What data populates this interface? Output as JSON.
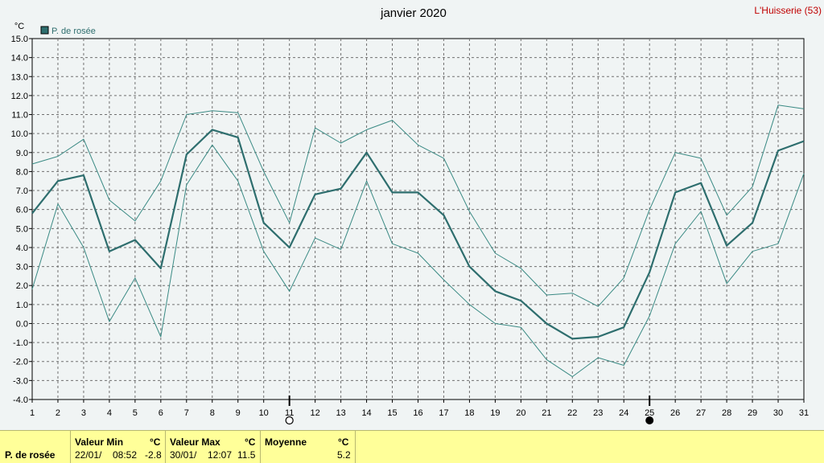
{
  "header": {
    "title": "janvier 2020",
    "station": "L'Huisserie (53)"
  },
  "chart_data": {
    "type": "line",
    "title": "janvier 2020",
    "ylabel": "°C",
    "ylim": [
      -4.0,
      15.0
    ],
    "y_ticks": [
      "15.0",
      "14.0",
      "13.0",
      "12.0",
      "11.0",
      "10.0",
      "9.0",
      "8.0",
      "7.0",
      "6.0",
      "5.0",
      "4.0",
      "3.0",
      "2.0",
      "1.0",
      "0.0",
      "-1.0",
      "-2.0",
      "-3.0",
      "-4.0"
    ],
    "x": [
      1,
      2,
      3,
      4,
      5,
      6,
      7,
      8,
      9,
      10,
      11,
      12,
      13,
      14,
      15,
      16,
      17,
      18,
      19,
      20,
      21,
      22,
      23,
      24,
      25,
      26,
      27,
      28,
      29,
      30,
      31
    ],
    "x_ticks": [
      "1",
      "2",
      "3",
      "4",
      "5",
      "6",
      "7",
      "8",
      "9",
      "10",
      "11",
      "12",
      "13",
      "14",
      "15",
      "16",
      "17",
      "18",
      "19",
      "20",
      "21",
      "22",
      "23",
      "24",
      "25",
      "26",
      "27",
      "28",
      "29",
      "30",
      "31"
    ],
    "grid": true,
    "legend": "top-left",
    "series": [
      {
        "name": "P. de rosée",
        "role": "mean",
        "color": "#2e6e6e",
        "values": [
          5.8,
          7.5,
          7.8,
          3.8,
          4.4,
          2.9,
          8.9,
          10.2,
          9.8,
          5.3,
          4.0,
          6.8,
          7.1,
          9.0,
          6.9,
          6.9,
          5.7,
          3.0,
          1.7,
          1.2,
          0.0,
          -0.8,
          -0.7,
          -0.2,
          2.7,
          6.9,
          7.4,
          4.1,
          5.3,
          9.1,
          9.6
        ]
      },
      {
        "role": "max",
        "color": "#3a8a84",
        "values": [
          8.4,
          8.8,
          9.7,
          6.5,
          5.4,
          7.5,
          11.0,
          11.2,
          11.1,
          8.0,
          5.3,
          10.3,
          9.5,
          10.2,
          10.7,
          9.4,
          8.7,
          5.9,
          3.7,
          2.9,
          1.5,
          1.6,
          0.9,
          2.4,
          6.0,
          9.0,
          8.7,
          5.7,
          7.2,
          11.5,
          11.3
        ]
      },
      {
        "role": "min",
        "color": "#3a8a84",
        "values": [
          1.8,
          6.3,
          4.0,
          0.1,
          2.4,
          -0.7,
          7.3,
          9.4,
          7.5,
          3.8,
          1.7,
          4.5,
          3.9,
          7.5,
          4.2,
          3.7,
          2.3,
          1.0,
          0.0,
          -0.2,
          -1.9,
          -2.8,
          -1.8,
          -2.2,
          0.4,
          4.2,
          5.9,
          2.1,
          3.8,
          4.2,
          7.9
        ]
      }
    ],
    "moon_phases": [
      {
        "day": 11,
        "phase": "full-moon"
      },
      {
        "day": 25,
        "phase": "new-moon"
      }
    ]
  },
  "footer": {
    "label": "P. de rosée",
    "min_header": "Valeur Min",
    "min_unit": "°C",
    "min_date": "22/01/",
    "min_time": "08:52",
    "min_value": "-2.8",
    "max_header": "Valeur Max",
    "max_unit": "°C",
    "max_date": "30/01/",
    "max_time": "12:07",
    "max_value": "11.5",
    "avg_header": "Moyenne",
    "avg_unit": "°C",
    "avg_value": "5.2"
  }
}
